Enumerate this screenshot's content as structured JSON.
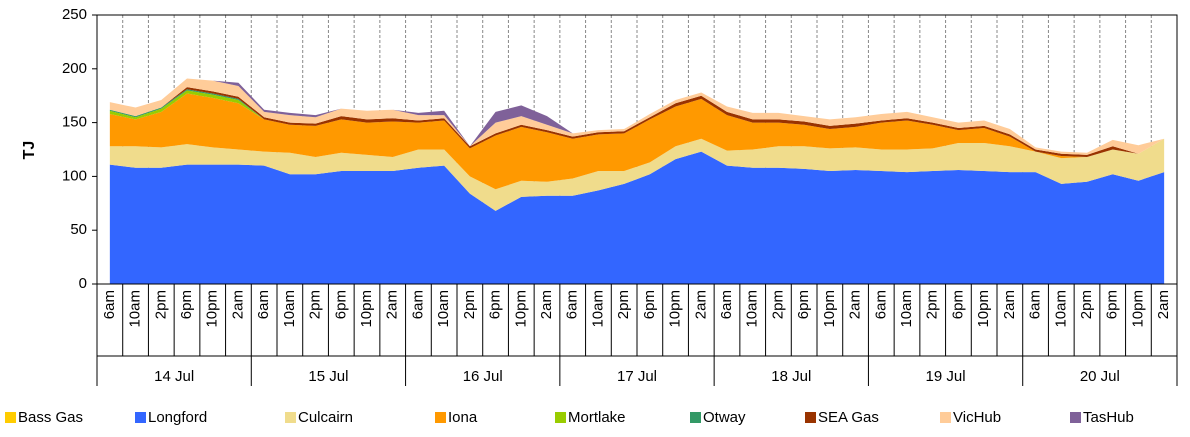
{
  "chart_data": {
    "type": "stacked-area",
    "y_label": "TJ",
    "ylim": [
      0,
      250
    ],
    "yticks": [
      0,
      50,
      100,
      150,
      200,
      250
    ],
    "categories": [
      "6am",
      "10am",
      "2pm",
      "6pm",
      "10pm",
      "2am",
      "6am",
      "10am",
      "2pm",
      "6pm",
      "10pm",
      "2am",
      "6am",
      "10am",
      "2pm",
      "6pm",
      "10pm",
      "2am",
      "6am",
      "10am",
      "2pm",
      "6pm",
      "10pm",
      "2am",
      "6am",
      "10am",
      "2pm",
      "6pm",
      "10pm",
      "2am",
      "6am",
      "10am",
      "2pm",
      "6pm",
      "10pm",
      "2am",
      "6am",
      "10am",
      "2pm",
      "6pm",
      "10pm",
      "2am"
    ],
    "groups": [
      "14 Jul",
      "15 Jul",
      "16 Jul",
      "17 Jul",
      "18 Jul",
      "19 Jul",
      "20 Jul"
    ],
    "series": [
      {
        "name": "Bass Gas",
        "color": "#ffcc00",
        "values": [
          0,
          0,
          0,
          0,
          0,
          0,
          0,
          0,
          0,
          0,
          0,
          0,
          0,
          0,
          0,
          0,
          0,
          0,
          0,
          0,
          0,
          0,
          0,
          0,
          0,
          0,
          0,
          0,
          0,
          0,
          0,
          0,
          0,
          0,
          0,
          0,
          0,
          0,
          0,
          0,
          0,
          0
        ]
      },
      {
        "name": "Longford",
        "color": "#3366ff",
        "values": [
          111,
          108,
          108,
          111,
          111,
          111,
          110,
          102,
          102,
          105,
          105,
          105,
          108,
          110,
          84,
          68,
          81,
          82,
          82,
          87,
          93,
          102,
          116,
          123,
          110,
          108,
          108,
          107,
          105,
          106,
          105,
          104,
          105,
          106,
          105,
          104,
          104,
          93,
          95,
          102,
          96,
          104
        ]
      },
      {
        "name": "Culcairn",
        "color": "#f0dc8c",
        "values": [
          17,
          20,
          19,
          19,
          16,
          14,
          13,
          20,
          16,
          17,
          15,
          13,
          17,
          15,
          16,
          20,
          15,
          13,
          16,
          18,
          12,
          11,
          12,
          12,
          14,
          17,
          20,
          21,
          21,
          21,
          20,
          21,
          21,
          25,
          26,
          24,
          19,
          24,
          23,
          23,
          25,
          31
        ]
      },
      {
        "name": "Iona",
        "color": "#ff9900",
        "values": [
          30,
          25,
          33,
          47,
          46,
          43,
          30,
          26,
          29,
          31,
          30,
          33,
          25,
          27,
          26,
          50,
          50,
          46,
          37,
          34,
          35,
          40,
          37,
          37,
          33,
          25,
          22,
          20,
          18,
          19,
          25,
          27,
          22,
          12,
          14,
          9,
          0,
          2,
          0,
          0,
          0,
          0
        ]
      },
      {
        "name": "Mortlake",
        "color": "#99cc00",
        "values": [
          3,
          2,
          3,
          3,
          3,
          3,
          0,
          0,
          0,
          0,
          0,
          0,
          0,
          0,
          0,
          0,
          0,
          0,
          0,
          0,
          0,
          0,
          0,
          0,
          0,
          0,
          0,
          0,
          0,
          0,
          0,
          0,
          0,
          0,
          0,
          0,
          0,
          0,
          0,
          0,
          0,
          0
        ]
      },
      {
        "name": "Otway",
        "color": "#339966",
        "values": [
          1,
          1,
          1,
          1,
          1,
          1,
          0,
          0,
          0,
          0,
          0,
          0,
          0,
          0,
          0,
          0,
          0,
          0,
          0,
          0,
          0,
          0,
          0,
          0,
          0,
          0,
          0,
          0,
          0,
          0,
          0,
          0,
          0,
          0,
          0,
          0,
          0,
          0,
          0,
          0,
          0,
          0
        ]
      },
      {
        "name": "SEA Gas",
        "color": "#993300",
        "values": [
          0,
          0,
          0,
          2,
          2,
          2,
          2,
          2,
          2,
          3,
          3,
          3,
          2,
          2,
          2,
          2,
          2,
          2,
          2,
          2,
          2,
          2,
          3,
          3,
          3,
          3,
          3,
          3,
          3,
          3,
          2,
          2,
          2,
          2,
          2,
          2,
          2,
          2,
          2,
          3,
          0,
          0
        ]
      },
      {
        "name": "VicHub",
        "color": "#ffcc99",
        "values": [
          7,
          8,
          7,
          8,
          10,
          10,
          5,
          7,
          6,
          7,
          8,
          8,
          5,
          3,
          0,
          10,
          8,
          5,
          3,
          2,
          2,
          3,
          3,
          3,
          5,
          6,
          6,
          5,
          6,
          6,
          6,
          6,
          5,
          5,
          5,
          5,
          2,
          2,
          2,
          6,
          8,
          0
        ]
      },
      {
        "name": "TasHub",
        "color": "#7f6199",
        "values": [
          0,
          0,
          0,
          0,
          0,
          3,
          2,
          2,
          2,
          0,
          0,
          0,
          2,
          4,
          0,
          10,
          10,
          8,
          0,
          0,
          0,
          0,
          0,
          0,
          0,
          0,
          0,
          0,
          0,
          0,
          0,
          0,
          0,
          0,
          0,
          0,
          0,
          0,
          0,
          0,
          0,
          0
        ]
      }
    ],
    "stack_order": [
      1,
      2,
      3,
      4,
      5,
      6,
      7,
      8,
      0
    ]
  }
}
